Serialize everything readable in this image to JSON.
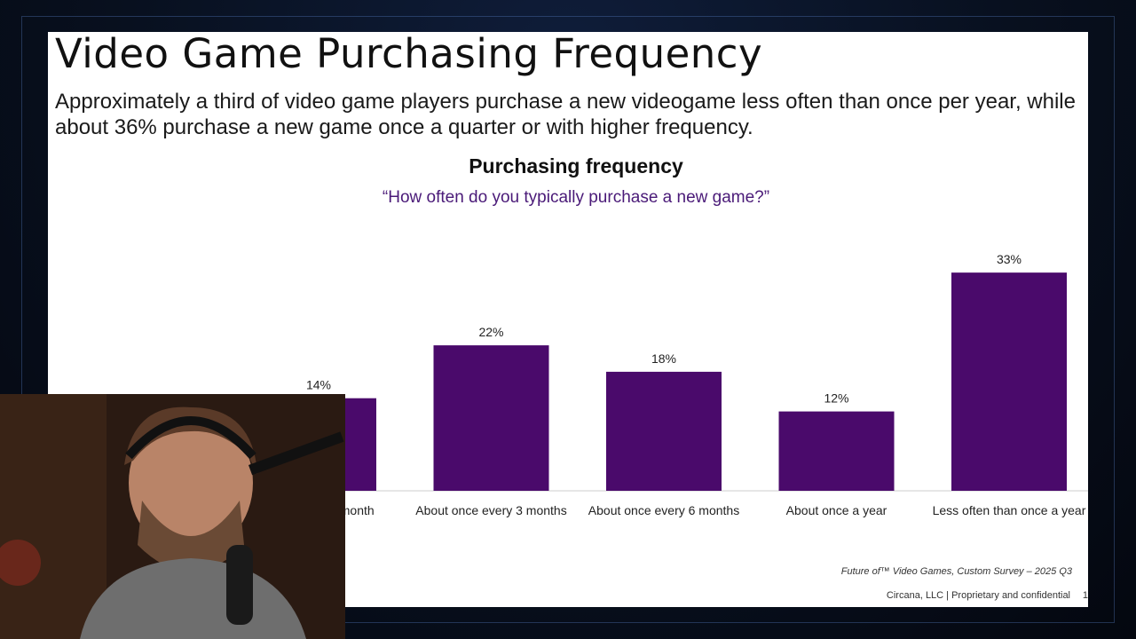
{
  "slide": {
    "title": "Video Game Purchasing Frequency",
    "subtitle": "Approximately a third of video game players purchase a new videogame less often than once per year, while about 36% purchase a new game once a quarter or with higher frequency.",
    "source": "Future of™ Video Games, Custom Survey – 2025 Q3",
    "company": "Circana, LLC |  Proprietary and confidential",
    "page": "1"
  },
  "colors": {
    "bar": "#4a0a6b",
    "question": "#4a1a78"
  },
  "chart_data": {
    "type": "bar",
    "title": "Purchasing frequency",
    "subtitle": "“How often do you typically purchase a new game?”",
    "categories": [
      "About once a month",
      "About once every 3 months",
      "About once every 6 months",
      "About once a year",
      "Less often than once a year"
    ],
    "values": [
      14,
      22,
      18,
      12,
      33
    ],
    "data_labels": [
      "14%",
      "22%",
      "18%",
      "12%",
      "33%"
    ],
    "ylim": [
      0,
      35
    ],
    "grid": false,
    "legend": "none"
  }
}
